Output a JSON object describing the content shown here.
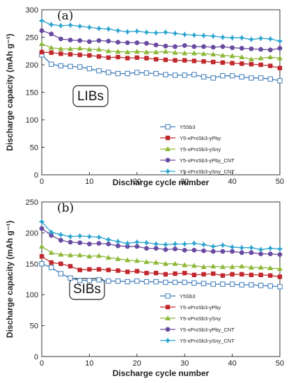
{
  "chart_data": [
    {
      "type": "line",
      "panel_label": "(a)",
      "tag": "LIBs",
      "xlabel": "Discharge cycle number",
      "ylabel": "Discharge capacity (mAh g⁻¹)",
      "xlim": [
        0,
        50
      ],
      "ylim": [
        0,
        300
      ],
      "xticks": [
        0,
        10,
        20,
        30,
        40,
        50
      ],
      "yticks": [
        0,
        50,
        100,
        150,
        200,
        250,
        300
      ],
      "grid": false,
      "legend_position": "bottom-right",
      "x": [
        0,
        2,
        4,
        6,
        8,
        10,
        12,
        14,
        16,
        18,
        20,
        22,
        24,
        26,
        28,
        30,
        32,
        34,
        36,
        38,
        40,
        42,
        44,
        46,
        48,
        50
      ],
      "series": [
        {
          "name": "Y5Sb3",
          "color": "#3c7ab8",
          "marker": "open-square",
          "values": [
            218,
            201,
            198,
            197,
            196,
            193,
            189,
            186,
            184,
            184,
            186,
            185,
            184,
            182,
            181,
            181,
            182,
            178,
            176,
            180,
            180,
            178,
            176,
            176,
            174,
            171
          ]
        },
        {
          "name": "Y5-xPrxSb3-yPby",
          "color": "#c0282d",
          "marker": "square",
          "values": [
            223,
            222,
            220,
            219,
            218,
            217,
            215,
            213,
            214,
            212,
            213,
            212,
            210,
            209,
            208,
            208,
            207,
            206,
            205,
            204,
            203,
            202,
            201,
            200,
            198,
            194
          ]
        },
        {
          "name": "Y5-xPrxSb3-ySny",
          "color": "#8db838",
          "marker": "triangle",
          "values": [
            238,
            231,
            229,
            229,
            230,
            228,
            228,
            225,
            224,
            223,
            224,
            223,
            223,
            224,
            222,
            221,
            221,
            220,
            219,
            217,
            216,
            214,
            210,
            212,
            214,
            212
          ]
        },
        {
          "name": "Y5-xPrxSb3-yPby_CNT",
          "color": "#6a4aa0",
          "marker": "circle",
          "values": [
            262,
            256,
            247,
            245,
            244,
            242,
            244,
            243,
            241,
            240,
            240,
            239,
            236,
            234,
            233,
            235,
            233,
            233,
            232,
            233,
            231,
            230,
            229,
            228,
            227,
            230
          ]
        },
        {
          "name": "Y5-xPrxSb3-ySny_CNT",
          "color": "#2aa3cf",
          "marker": "star",
          "values": [
            280,
            273,
            271,
            272,
            270,
            268,
            266,
            265,
            262,
            260,
            261,
            259,
            258,
            259,
            257,
            255,
            254,
            253,
            252,
            250,
            249,
            249,
            246,
            248,
            247,
            243
          ]
        }
      ]
    },
    {
      "type": "line",
      "panel_label": "(b)",
      "tag": "SIBs",
      "xlabel": "Discharge cycle number",
      "ylabel": "Discharge capacity (mAh g⁻¹)",
      "xlim": [
        0,
        50
      ],
      "ylim": [
        0,
        250
      ],
      "xticks": [
        0,
        10,
        20,
        30,
        40,
        50
      ],
      "yticks": [
        0,
        50,
        100,
        150,
        200,
        250
      ],
      "grid": false,
      "legend_position": "bottom-right",
      "x": [
        0,
        2,
        4,
        6,
        8,
        10,
        12,
        14,
        16,
        18,
        20,
        22,
        24,
        26,
        28,
        30,
        32,
        34,
        36,
        38,
        40,
        42,
        44,
        46,
        48,
        50
      ],
      "series": [
        {
          "name": "Y5Sb3",
          "color": "#3c7ab8",
          "marker": "open-square",
          "values": [
            150,
            144,
            134,
            127,
            123,
            123,
            124,
            122,
            122,
            121,
            122,
            121,
            121,
            120,
            120,
            120,
            119,
            118,
            117,
            117,
            117,
            116,
            116,
            115,
            114,
            113
          ]
        },
        {
          "name": "Y5-xPrxSb3-yPby",
          "color": "#c0282d",
          "marker": "square",
          "values": [
            162,
            152,
            150,
            146,
            140,
            141,
            141,
            140,
            139,
            137,
            138,
            135,
            135,
            133,
            134,
            135,
            132,
            133,
            134,
            131,
            133,
            133,
            132,
            132,
            131,
            129
          ]
        },
        {
          "name": "Y5-xPrxSb3-ySny",
          "color": "#8db838",
          "marker": "triangle",
          "values": [
            178,
            168,
            165,
            164,
            164,
            162,
            163,
            160,
            158,
            156,
            155,
            153,
            152,
            150,
            150,
            148,
            147,
            145,
            146,
            145,
            145,
            146,
            144,
            144,
            143,
            142
          ]
        },
        {
          "name": "Y5-xPrxSb3-yPby_CNT",
          "color": "#6a4aa0",
          "marker": "circle",
          "values": [
            207,
            196,
            188,
            185,
            184,
            182,
            183,
            182,
            179,
            178,
            178,
            175,
            175,
            173,
            174,
            172,
            172,
            171,
            170,
            170,
            170,
            168,
            168,
            166,
            166,
            165
          ]
        },
        {
          "name": "Y5-xPrxSb3-ySny_CNT",
          "color": "#2aa3cf",
          "marker": "star",
          "values": [
            218,
            201,
            197,
            194,
            195,
            194,
            193,
            189,
            186,
            183,
            185,
            184,
            182,
            181,
            182,
            182,
            183,
            181,
            178,
            180,
            177,
            176,
            176,
            173,
            175,
            174
          ]
        }
      ]
    }
  ]
}
